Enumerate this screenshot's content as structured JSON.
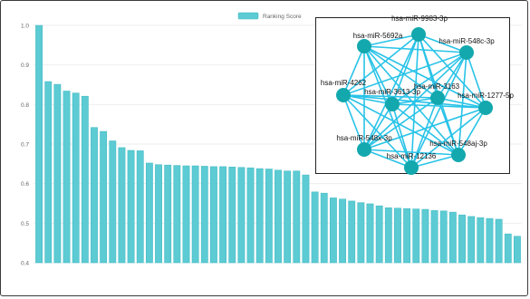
{
  "chart_data": {
    "type": "bar",
    "legend": {
      "label": "Ranking Score",
      "placement": "top"
    },
    "ylim": [
      0.4,
      1.0
    ],
    "y_ticks": [
      "1.0",
      "0.9",
      "0.8",
      "0.7",
      "0.6",
      "0.5",
      "0.4"
    ],
    "y_tick_values": [
      1.0,
      0.9,
      0.8,
      0.7,
      0.6,
      0.5,
      0.4
    ],
    "grid": true,
    "colors": {
      "bar": "#5ccbd3",
      "bar_stroke": "#3cb8c2",
      "edge": "#29c3e8",
      "node": "#13a8ad"
    },
    "values": [
      1.0,
      0.858,
      0.851,
      0.834,
      0.829,
      0.821,
      0.742,
      0.732,
      0.708,
      0.691,
      0.684,
      0.683,
      0.652,
      0.648,
      0.647,
      0.646,
      0.645,
      0.645,
      0.644,
      0.643,
      0.643,
      0.642,
      0.641,
      0.64,
      0.638,
      0.637,
      0.634,
      0.632,
      0.632,
      0.622,
      0.579,
      0.576,
      0.564,
      0.561,
      0.556,
      0.552,
      0.549,
      0.544,
      0.539,
      0.538,
      0.537,
      0.536,
      0.535,
      0.532,
      0.531,
      0.528,
      0.521,
      0.517,
      0.514,
      0.512,
      0.51,
      0.473,
      0.467
    ]
  },
  "network": {
    "nodes": [
      {
        "id": "hsa-miR-9983-3p"
      },
      {
        "id": "hsa-miR-5692a"
      },
      {
        "id": "hsa-miR-548c-3p"
      },
      {
        "id": "hsa-miR-4262"
      },
      {
        "id": "hsa-miR-3163"
      },
      {
        "id": "hsa-miR-3613-3p"
      },
      {
        "id": "hsa-miR-1277-5p"
      },
      {
        "id": "hsa-miR-548x-3p"
      },
      {
        "id": "hsa-miR-548aj-3p"
      },
      {
        "id": "hsa-miR-12136"
      }
    ]
  }
}
